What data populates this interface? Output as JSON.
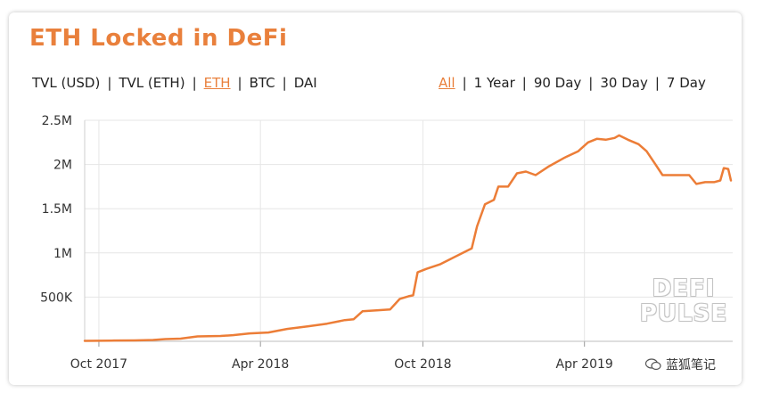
{
  "header": {
    "title": "ETH Locked in DeFi"
  },
  "metric_tabs": [
    {
      "label": "TVL (USD)",
      "active": false
    },
    {
      "label": "TVL (ETH)",
      "active": false
    },
    {
      "label": "ETH",
      "active": true
    },
    {
      "label": "BTC",
      "active": false
    },
    {
      "label": "DAI",
      "active": false
    }
  ],
  "range_tabs": [
    {
      "label": "All",
      "active": true
    },
    {
      "label": "1 Year",
      "active": false
    },
    {
      "label": "90 Day",
      "active": false
    },
    {
      "label": "30 Day",
      "active": false
    },
    {
      "label": "7 Day",
      "active": false
    }
  ],
  "watermark": {
    "line1": "DEFI",
    "line2": "PULSE"
  },
  "wechat_label": "蓝狐笔记",
  "colors": {
    "accent": "#e9803c",
    "line": "#ec7d37",
    "grid": "#e6e6e6"
  },
  "chart_data": {
    "type": "line",
    "title": "ETH Locked in DeFi",
    "xlabel": "",
    "ylabel": "",
    "ylim": [
      0,
      2500000
    ],
    "y_ticks": [
      {
        "value": 2500000,
        "label": "2.5M"
      },
      {
        "value": 2000000,
        "label": "2M"
      },
      {
        "value": 1500000,
        "label": "1.5M"
      },
      {
        "value": 1000000,
        "label": "1M"
      },
      {
        "value": 500000,
        "label": "500K"
      }
    ],
    "x_range": [
      "2017-09-15",
      "2019-09-15"
    ],
    "x_ticks": [
      {
        "date": "2017-10-01",
        "label": "Oct 2017"
      },
      {
        "date": "2018-04-01",
        "label": "Apr 2018"
      },
      {
        "date": "2018-10-01",
        "label": "Oct 2018"
      },
      {
        "date": "2019-04-01",
        "label": "Apr 2019"
      }
    ],
    "grid": true,
    "series": [
      {
        "points": [
          [
            "2017-09-15",
            5000
          ],
          [
            "2017-10-15",
            8000
          ],
          [
            "2017-11-10",
            10000
          ],
          [
            "2017-12-01",
            15000
          ],
          [
            "2017-12-15",
            25000
          ],
          [
            "2018-01-01",
            30000
          ],
          [
            "2018-01-20",
            55000
          ],
          [
            "2018-02-15",
            60000
          ],
          [
            "2018-03-01",
            70000
          ],
          [
            "2018-03-20",
            90000
          ],
          [
            "2018-04-10",
            100000
          ],
          [
            "2018-05-01",
            140000
          ],
          [
            "2018-05-25",
            170000
          ],
          [
            "2018-06-15",
            200000
          ],
          [
            "2018-07-05",
            240000
          ],
          [
            "2018-07-15",
            250000
          ],
          [
            "2018-07-25",
            340000
          ],
          [
            "2018-08-10",
            350000
          ],
          [
            "2018-08-25",
            360000
          ],
          [
            "2018-09-05",
            480000
          ],
          [
            "2018-09-15",
            510000
          ],
          [
            "2018-09-20",
            520000
          ],
          [
            "2018-09-25",
            780000
          ],
          [
            "2018-10-05",
            820000
          ],
          [
            "2018-10-20",
            870000
          ],
          [
            "2018-11-01",
            930000
          ],
          [
            "2018-11-15",
            1000000
          ],
          [
            "2018-11-25",
            1050000
          ],
          [
            "2018-12-01",
            1300000
          ],
          [
            "2018-12-10",
            1550000
          ],
          [
            "2018-12-20",
            1600000
          ],
          [
            "2018-12-25",
            1750000
          ],
          [
            "2019-01-05",
            1750000
          ],
          [
            "2019-01-15",
            1900000
          ],
          [
            "2019-01-25",
            1920000
          ],
          [
            "2019-02-05",
            1880000
          ],
          [
            "2019-02-20",
            1980000
          ],
          [
            "2019-03-10",
            2080000
          ],
          [
            "2019-03-25",
            2150000
          ],
          [
            "2019-04-05",
            2250000
          ],
          [
            "2019-04-15",
            2290000
          ],
          [
            "2019-04-25",
            2280000
          ],
          [
            "2019-05-05",
            2300000
          ],
          [
            "2019-05-10",
            2330000
          ],
          [
            "2019-05-20",
            2280000
          ],
          [
            "2019-06-01",
            2230000
          ],
          [
            "2019-06-10",
            2150000
          ],
          [
            "2019-06-20",
            2000000
          ],
          [
            "2019-06-28",
            1880000
          ],
          [
            "2019-07-15",
            1880000
          ],
          [
            "2019-07-28",
            1880000
          ],
          [
            "2019-08-05",
            1780000
          ],
          [
            "2019-08-15",
            1800000
          ],
          [
            "2019-08-25",
            1800000
          ],
          [
            "2019-09-01",
            1820000
          ],
          [
            "2019-09-05",
            1960000
          ],
          [
            "2019-09-10",
            1950000
          ],
          [
            "2019-09-13",
            1820000
          ]
        ]
      }
    ]
  }
}
